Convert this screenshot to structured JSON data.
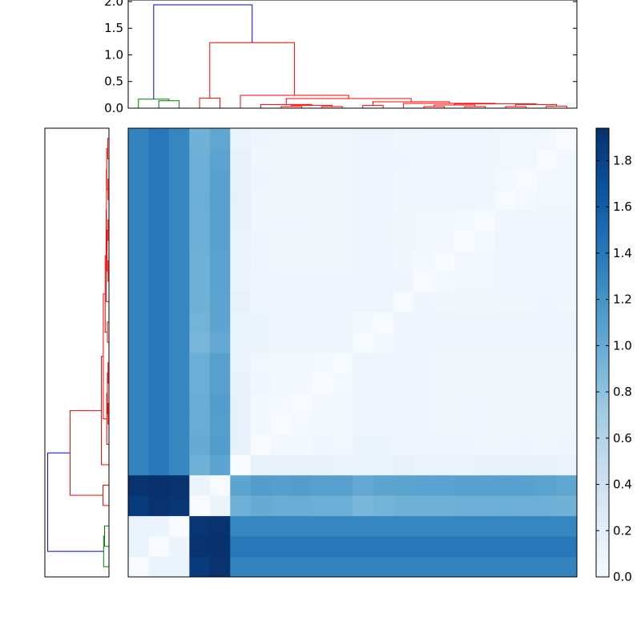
{
  "chart_data": [
    {
      "type": "dendrogram",
      "orientation": "top",
      "ylim": [
        0,
        2.03
      ],
      "yticks": [
        "0.0",
        "0.5",
        "1.0",
        "1.5",
        "2.0"
      ],
      "leaf_count": 22,
      "links": [
        {
          "x": [
            1,
            1,
            2,
            2
          ],
          "y": [
            0,
            0.14,
            0.14,
            0
          ],
          "color": "#008000"
        },
        {
          "x": [
            0,
            0,
            1.5,
            1.5
          ],
          "y": [
            0,
            0.17,
            0.17,
            0.14
          ],
          "color": "#008000"
        },
        {
          "x": [
            3,
            3,
            4,
            4
          ],
          "y": [
            0,
            0.19,
            0.19,
            0
          ],
          "color": "#ff0000"
        },
        {
          "x": [
            7,
            7,
            8,
            8
          ],
          "y": [
            0,
            0.03,
            0.03,
            0
          ],
          "color": "#ff0000"
        },
        {
          "x": [
            9,
            9,
            10,
            10
          ],
          "y": [
            0,
            0.03,
            0.03,
            0
          ],
          "color": "#ff0000"
        },
        {
          "x": [
            7.5,
            7.5,
            9.5,
            9.5
          ],
          "y": [
            0.03,
            0.05,
            0.05,
            0.03
          ],
          "color": "#ff0000"
        },
        {
          "x": [
            6,
            6,
            8.5,
            8.5
          ],
          "y": [
            0,
            0.07,
            0.07,
            0.05
          ],
          "color": "#ff0000"
        },
        {
          "x": [
            11,
            11,
            12,
            12
          ],
          "y": [
            0,
            0.05,
            0.05,
            0
          ],
          "color": "#ff0000"
        },
        {
          "x": [
            14,
            14,
            15,
            15
          ],
          "y": [
            0,
            0.03,
            0.03,
            0
          ],
          "color": "#ff0000"
        },
        {
          "x": [
            16,
            16,
            17,
            17
          ],
          "y": [
            0,
            0.03,
            0.03,
            0
          ],
          "color": "#ff0000"
        },
        {
          "x": [
            18,
            18,
            19,
            19
          ],
          "y": [
            0,
            0.03,
            0.03,
            0
          ],
          "color": "#ff0000"
        },
        {
          "x": [
            20,
            20,
            21,
            21
          ],
          "y": [
            0,
            0.04,
            0.04,
            0
          ],
          "color": "#ff0000"
        },
        {
          "x": [
            14.5,
            14.5,
            16.5,
            16.5
          ],
          "y": [
            0.03,
            0.06,
            0.06,
            0.03
          ],
          "color": "#ff0000"
        },
        {
          "x": [
            18.5,
            18.5,
            20.5,
            20.5
          ],
          "y": [
            0.03,
            0.07,
            0.07,
            0.04
          ],
          "color": "#ff0000"
        },
        {
          "x": [
            15.5,
            15.5,
            19.5,
            19.5
          ],
          "y": [
            0.06,
            0.08,
            0.08,
            0.07
          ],
          "color": "#ff0000"
        },
        {
          "x": [
            13,
            13,
            17.5,
            17.5
          ],
          "y": [
            0,
            0.09,
            0.09,
            0.08
          ],
          "color": "#ff0000"
        },
        {
          "x": [
            11.5,
            11.5,
            15.25,
            15.25
          ],
          "y": [
            0.05,
            0.12,
            0.12,
            0.09
          ],
          "color": "#ff0000"
        },
        {
          "x": [
            7.25,
            7.25,
            13.375,
            13.375
          ],
          "y": [
            0.07,
            0.18,
            0.18,
            0.12
          ],
          "color": "#ff0000"
        },
        {
          "x": [
            5,
            5,
            10.3125,
            10.3125
          ],
          "y": [
            0,
            0.24,
            0.24,
            0.18
          ],
          "color": "#ff0000"
        },
        {
          "x": [
            3.5,
            3.5,
            7.656,
            7.656
          ],
          "y": [
            0.19,
            1.23,
            1.23,
            0.24
          ],
          "color": "#ff0000"
        },
        {
          "x": [
            0.75,
            0.75,
            5.578,
            5.578
          ],
          "y": [
            0.17,
            1.94,
            1.94,
            1.23
          ],
          "color": "#0000ff"
        }
      ]
    },
    {
      "type": "dendrogram",
      "orientation": "left",
      "xlim": [
        2.03,
        0
      ],
      "same_linkage_as": "top"
    },
    {
      "type": "heatmap",
      "colormap": "Blues",
      "origin": "lower",
      "vmin": 0,
      "vmax": 1.94,
      "colorbar_ticks": [
        "0.0",
        "0.2",
        "0.4",
        "0.6",
        "0.8",
        "1.0",
        "1.2",
        "1.4",
        "1.6",
        "1.8"
      ],
      "matrix": [
        [
          0,
          0.13,
          0.13,
          1.86,
          1.92,
          1.32,
          1.32,
          1.32,
          1.32,
          1.32,
          1.32,
          1.32,
          1.32,
          1.32,
          1.32,
          1.32,
          1.32,
          1.32,
          1.32,
          1.32,
          1.32,
          1.32
        ],
        [
          0.13,
          0,
          0.12,
          1.92,
          1.93,
          1.4,
          1.4,
          1.4,
          1.4,
          1.4,
          1.4,
          1.4,
          1.4,
          1.4,
          1.4,
          1.4,
          1.4,
          1.4,
          1.4,
          1.4,
          1.4,
          1.4
        ],
        [
          0.13,
          0.12,
          0,
          1.9,
          1.92,
          1.3,
          1.3,
          1.3,
          1.3,
          1.3,
          1.3,
          1.3,
          1.3,
          1.3,
          1.3,
          1.3,
          1.3,
          1.3,
          1.3,
          1.3,
          1.3,
          1.3
        ],
        [
          1.86,
          1.92,
          1.9,
          0,
          0.12,
          0.95,
          1.0,
          0.98,
          0.98,
          0.97,
          0.97,
          0.9,
          0.93,
          0.95,
          0.95,
          0.95,
          0.96,
          0.96,
          0.97,
          0.96,
          0.96,
          0.94
        ],
        [
          1.92,
          1.93,
          1.92,
          0.12,
          0,
          1.05,
          1.12,
          1.1,
          1.12,
          1.09,
          1.09,
          1.02,
          1.05,
          1.06,
          1.07,
          1.07,
          1.08,
          1.08,
          1.09,
          1.08,
          1.06,
          1.04
        ],
        [
          1.32,
          1.4,
          1.3,
          0.95,
          1.05,
          0,
          0.15,
          0.15,
          0.15,
          0.14,
          0.13,
          0.11,
          0.11,
          0.15,
          0.13,
          0.13,
          0.13,
          0.14,
          0.15,
          0.14,
          0.15,
          0.13
        ],
        [
          1.32,
          1.4,
          1.3,
          1.0,
          1.12,
          0.15,
          0,
          0.04,
          0.05,
          0.07,
          0.06,
          0.11,
          0.11,
          0.1,
          0.1,
          0.09,
          0.09,
          0.08,
          0.08,
          0.09,
          0.08,
          0.09
        ],
        [
          1.32,
          1.4,
          1.3,
          0.98,
          1.1,
          0.15,
          0.04,
          0,
          0.03,
          0.05,
          0.05,
          0.1,
          0.1,
          0.09,
          0.09,
          0.08,
          0.08,
          0.07,
          0.08,
          0.08,
          0.08,
          0.08
        ],
        [
          1.32,
          1.4,
          1.3,
          0.98,
          1.12,
          0.15,
          0.05,
          0.03,
          0,
          0.05,
          0.04,
          0.1,
          0.09,
          0.09,
          0.09,
          0.08,
          0.08,
          0.07,
          0.08,
          0.08,
          0.08,
          0.08
        ],
        [
          1.32,
          1.4,
          1.3,
          0.97,
          1.09,
          0.14,
          0.07,
          0.05,
          0.05,
          0,
          0.03,
          0.1,
          0.1,
          0.09,
          0.09,
          0.08,
          0.08,
          0.08,
          0.08,
          0.08,
          0.08,
          0.08
        ],
        [
          1.32,
          1.4,
          1.3,
          0.97,
          1.09,
          0.13,
          0.06,
          0.05,
          0.04,
          0.03,
          0,
          0.1,
          0.1,
          0.09,
          0.09,
          0.08,
          0.08,
          0.08,
          0.08,
          0.08,
          0.08,
          0.08
        ],
        [
          1.32,
          1.4,
          1.3,
          0.9,
          1.02,
          0.11,
          0.11,
          0.1,
          0.1,
          0.1,
          0.1,
          0,
          0.05,
          0.09,
          0.1,
          0.1,
          0.09,
          0.09,
          0.1,
          0.1,
          0.09,
          0.1
        ],
        [
          1.32,
          1.4,
          1.3,
          0.93,
          1.05,
          0.11,
          0.11,
          0.1,
          0.09,
          0.1,
          0.1,
          0.05,
          0,
          0.09,
          0.1,
          0.1,
          0.09,
          0.09,
          0.1,
          0.1,
          0.09,
          0.1
        ],
        [
          1.32,
          1.4,
          1.3,
          0.95,
          1.06,
          0.15,
          0.1,
          0.09,
          0.09,
          0.09,
          0.09,
          0.09,
          0.09,
          0,
          0.09,
          0.08,
          0.08,
          0.08,
          0.08,
          0.08,
          0.09,
          0.08
        ],
        [
          1.32,
          1.4,
          1.3,
          0.95,
          1.07,
          0.13,
          0.1,
          0.09,
          0.09,
          0.09,
          0.09,
          0.1,
          0.1,
          0.09,
          0,
          0.03,
          0.06,
          0.06,
          0.07,
          0.07,
          0.07,
          0.07
        ],
        [
          1.32,
          1.4,
          1.3,
          0.95,
          1.07,
          0.13,
          0.09,
          0.08,
          0.08,
          0.08,
          0.08,
          0.1,
          0.1,
          0.08,
          0.03,
          0,
          0.06,
          0.06,
          0.07,
          0.07,
          0.07,
          0.07
        ],
        [
          1.32,
          1.4,
          1.3,
          0.96,
          1.08,
          0.13,
          0.09,
          0.08,
          0.08,
          0.08,
          0.08,
          0.09,
          0.09,
          0.08,
          0.06,
          0.06,
          0,
          0.03,
          0.07,
          0.07,
          0.07,
          0.07
        ],
        [
          1.32,
          1.4,
          1.3,
          0.96,
          1.08,
          0.14,
          0.08,
          0.07,
          0.07,
          0.08,
          0.08,
          0.09,
          0.09,
          0.08,
          0.06,
          0.06,
          0.03,
          0,
          0.07,
          0.07,
          0.07,
          0.07
        ],
        [
          1.32,
          1.4,
          1.3,
          0.97,
          1.09,
          0.15,
          0.08,
          0.08,
          0.08,
          0.08,
          0.08,
          0.1,
          0.1,
          0.08,
          0.07,
          0.07,
          0.07,
          0.07,
          0,
          0.03,
          0.06,
          0.06
        ],
        [
          1.32,
          1.4,
          1.3,
          0.96,
          1.08,
          0.14,
          0.09,
          0.08,
          0.08,
          0.08,
          0.08,
          0.1,
          0.1,
          0.08,
          0.07,
          0.07,
          0.07,
          0.07,
          0.03,
          0,
          0.06,
          0.06
        ],
        [
          1.32,
          1.4,
          1.3,
          0.96,
          1.06,
          0.15,
          0.08,
          0.08,
          0.08,
          0.08,
          0.08,
          0.09,
          0.09,
          0.09,
          0.07,
          0.07,
          0.07,
          0.07,
          0.06,
          0.06,
          0,
          0.04
        ],
        [
          1.32,
          1.4,
          1.3,
          0.94,
          1.04,
          0.13,
          0.09,
          0.08,
          0.08,
          0.08,
          0.08,
          0.1,
          0.1,
          0.08,
          0.07,
          0.07,
          0.07,
          0.07,
          0.06,
          0.06,
          0.04,
          0
        ]
      ]
    }
  ]
}
